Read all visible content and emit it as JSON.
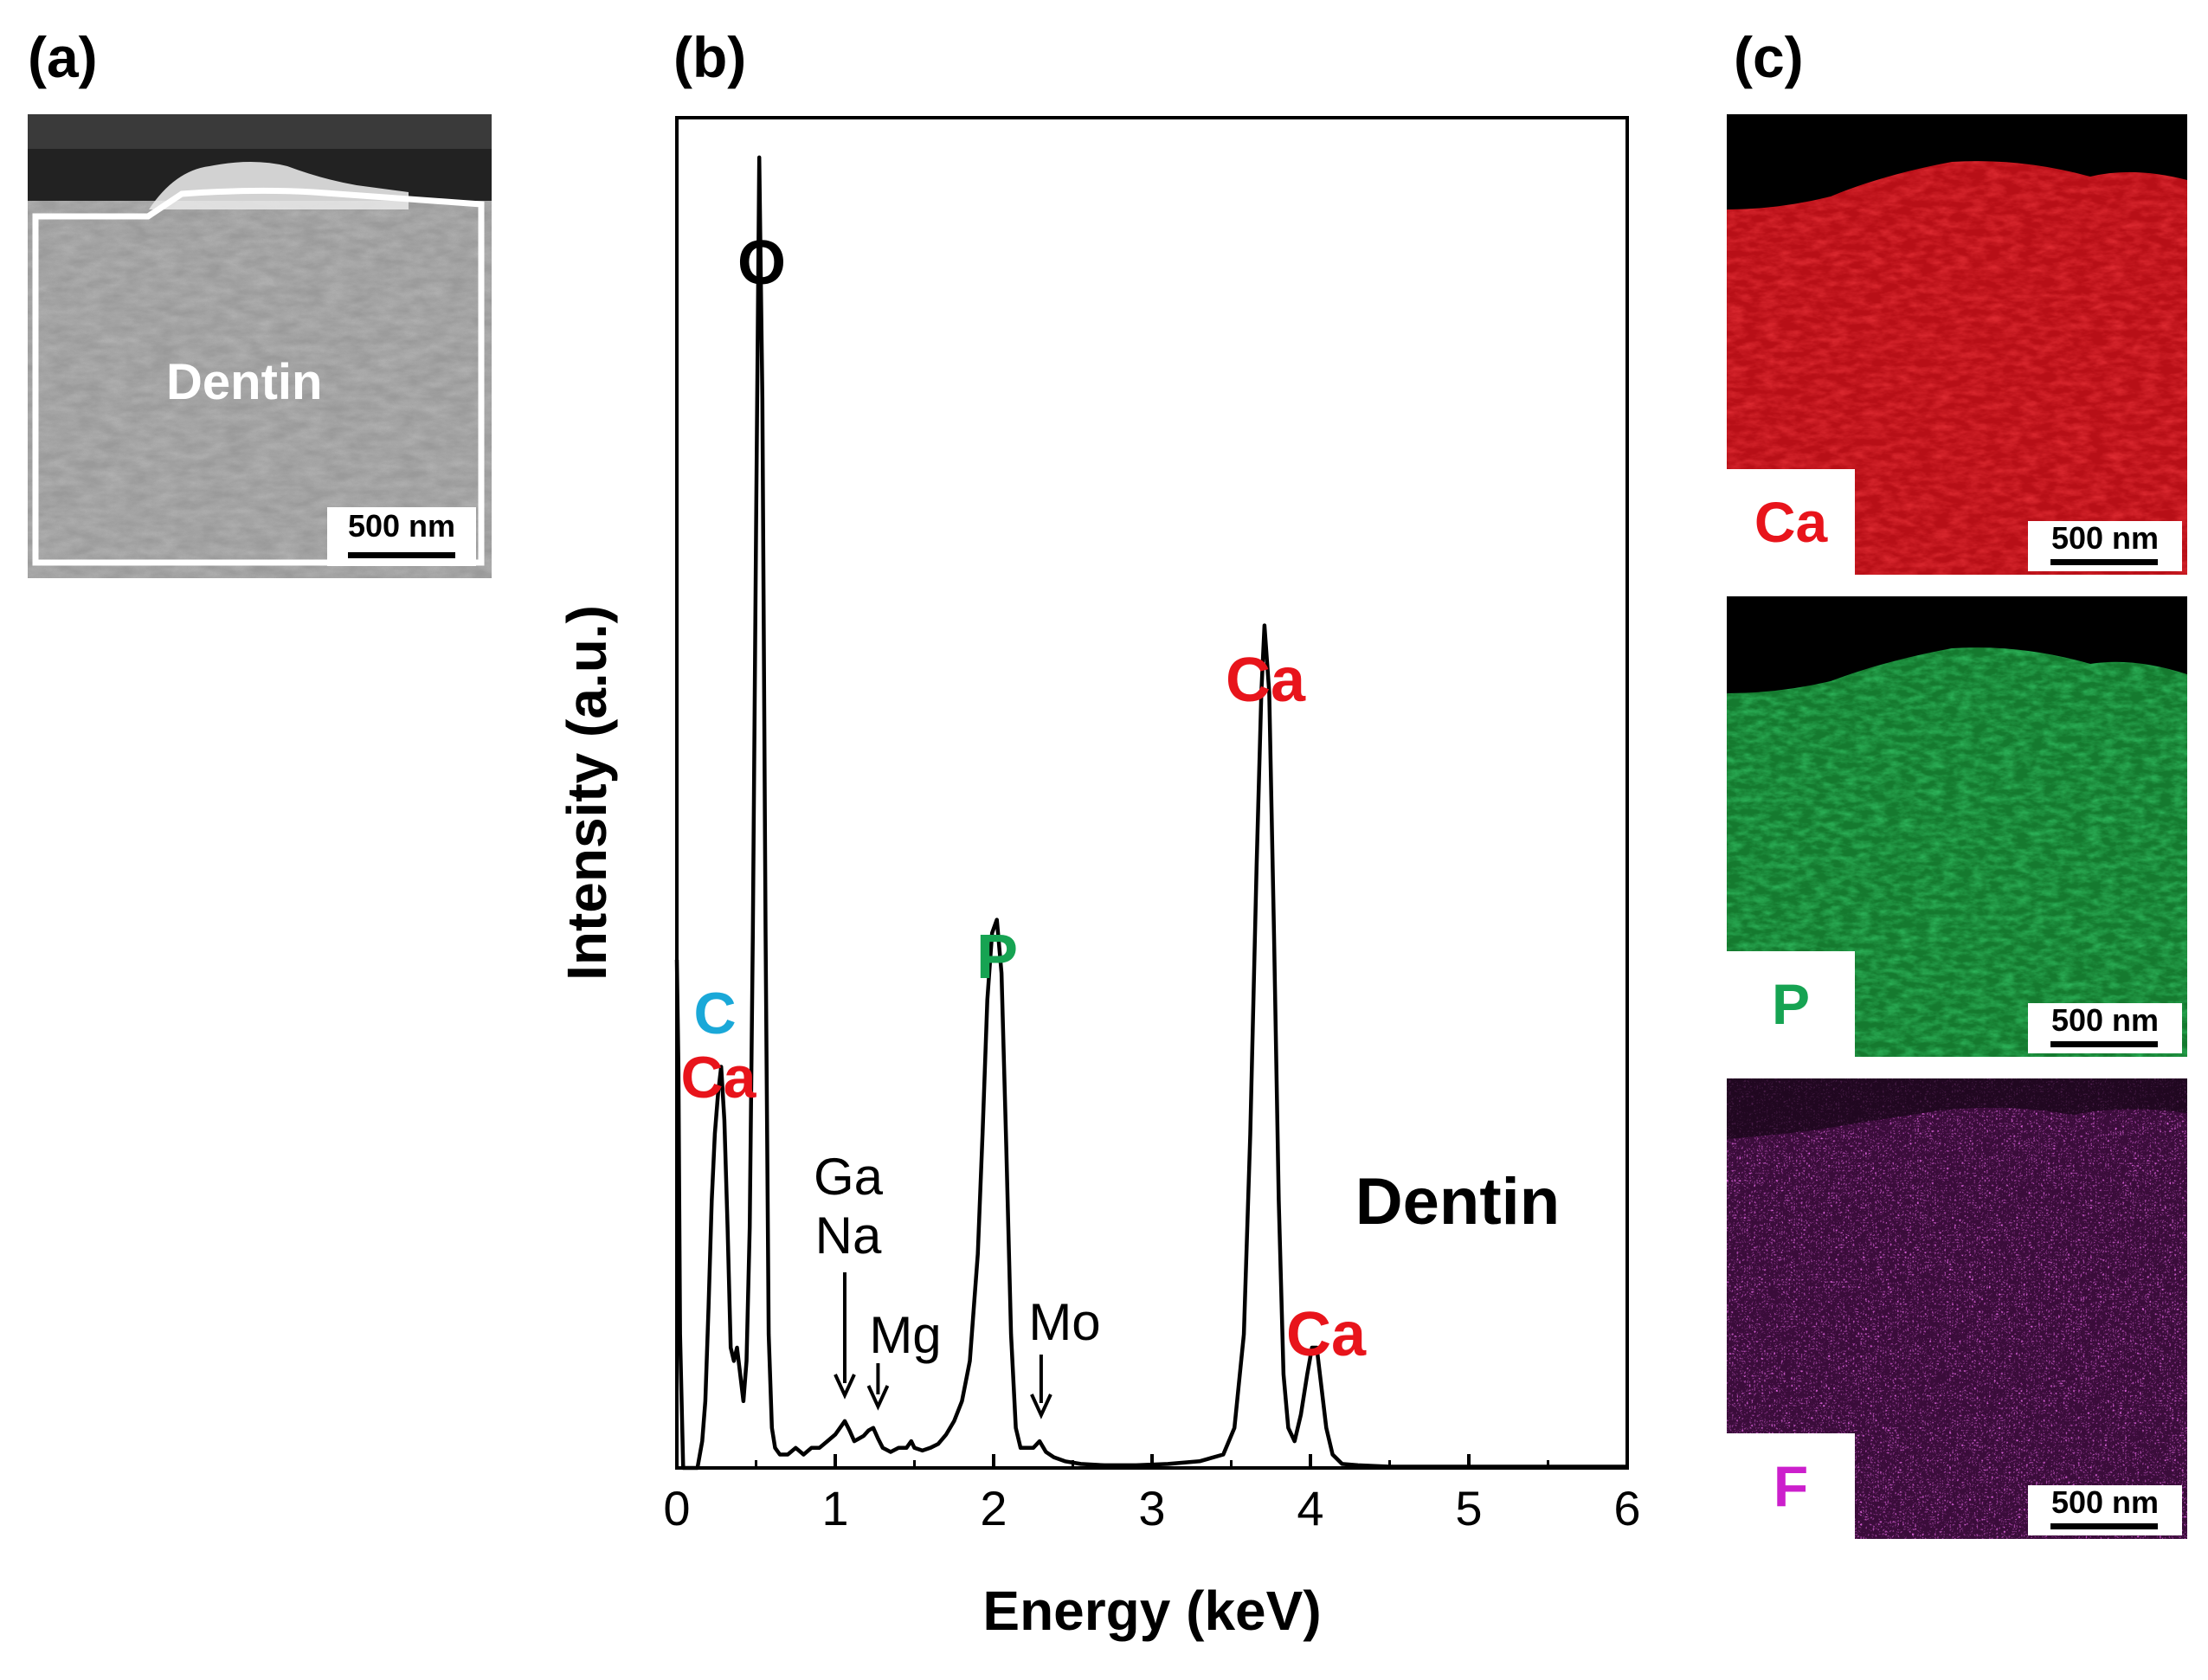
{
  "panels": {
    "a": {
      "label": "(a)",
      "region_label": "Dentin",
      "scale_bar": "500 nm"
    },
    "b": {
      "label": "(b)"
    },
    "c": {
      "label": "(c)",
      "maps": [
        {
          "element": "Ca",
          "color": "#e8141b",
          "scale_bar": "500 nm"
        },
        {
          "element": "P",
          "color": "#16a352",
          "scale_bar": "500 nm"
        },
        {
          "element": "F",
          "color": "#cc1fcc",
          "scale_bar": "500 nm"
        }
      ]
    }
  },
  "chart_data": {
    "type": "line",
    "title": "",
    "xlabel": "Energy (keV)",
    "ylabel": "Intensity (a.u.)",
    "xlim": [
      0,
      6
    ],
    "ylim": [
      0,
      100
    ],
    "x_ticks": [
      "0",
      "1",
      "2",
      "3",
      "4",
      "5",
      "6"
    ],
    "series": [
      {
        "name": "Dentin",
        "x": [
          0.0,
          0.01,
          0.02,
          0.04,
          0.06,
          0.08,
          0.1,
          0.13,
          0.16,
          0.18,
          0.2,
          0.22,
          0.24,
          0.26,
          0.28,
          0.3,
          0.32,
          0.34,
          0.36,
          0.38,
          0.4,
          0.42,
          0.44,
          0.46,
          0.48,
          0.5,
          0.52,
          0.54,
          0.56,
          0.58,
          0.6,
          0.62,
          0.65,
          0.7,
          0.75,
          0.8,
          0.85,
          0.9,
          0.95,
          1.0,
          1.03,
          1.06,
          1.09,
          1.12,
          1.15,
          1.18,
          1.21,
          1.24,
          1.27,
          1.3,
          1.35,
          1.4,
          1.45,
          1.48,
          1.5,
          1.55,
          1.6,
          1.65,
          1.7,
          1.75,
          1.8,
          1.85,
          1.9,
          1.93,
          1.96,
          1.99,
          2.02,
          2.05,
          2.08,
          2.11,
          2.14,
          2.17,
          2.2,
          2.25,
          2.29,
          2.33,
          2.38,
          2.45,
          2.55,
          2.7,
          2.9,
          3.1,
          3.3,
          3.45,
          3.52,
          3.58,
          3.62,
          3.66,
          3.69,
          3.71,
          3.74,
          3.77,
          3.8,
          3.83,
          3.86,
          3.9,
          3.94,
          3.98,
          4.01,
          4.04,
          4.07,
          4.1,
          4.14,
          4.2,
          4.3,
          4.5,
          5.0,
          5.5,
          6.0
        ],
        "y": [
          38,
          30,
          10,
          0,
          0,
          0,
          0,
          0,
          2,
          5,
          12,
          20,
          25,
          28,
          30,
          26,
          18,
          9,
          8,
          9,
          7,
          5,
          8,
          18,
          40,
          70,
          98,
          80,
          40,
          10,
          3,
          1.5,
          1,
          1,
          1.5,
          1,
          1.5,
          1.5,
          2,
          2.5,
          3,
          3.5,
          2.8,
          2,
          2.2,
          2.4,
          2.8,
          3,
          2.2,
          1.5,
          1.2,
          1.5,
          1.5,
          2,
          1.5,
          1.3,
          1.5,
          1.8,
          2.5,
          3.5,
          5,
          8,
          16,
          25,
          35,
          40,
          41,
          37,
          24,
          10,
          3,
          1.5,
          1.5,
          1.5,
          2,
          1.2,
          0.8,
          0.5,
          0.3,
          0.2,
          0.2,
          0.3,
          0.5,
          1,
          3,
          10,
          25,
          45,
          58,
          63,
          58,
          40,
          20,
          7,
          3,
          2,
          4,
          7,
          9,
          9,
          6,
          3,
          1,
          0.3,
          0.2,
          0.1,
          0.1,
          0.1,
          0.1
        ]
      }
    ],
    "annotations": [
      {
        "text": "O",
        "color": "#000000",
        "x": 0.52,
        "y_label": "top"
      },
      {
        "text": "C",
        "color": "#1aa8d8",
        "x": 0.23
      },
      {
        "text": "Ca",
        "color": "#e8141b",
        "x": 0.26
      },
      {
        "text": "Ga",
        "color": "#000000",
        "x": 1.05
      },
      {
        "text": "Na",
        "color": "#000000",
        "x": 1.05
      },
      {
        "text": "Mg",
        "color": "#000000",
        "x": 1.32
      },
      {
        "text": "P",
        "color": "#16a352",
        "x": 2.01
      },
      {
        "text": "Mo",
        "color": "#000000",
        "x": 2.33
      },
      {
        "text": "Ca",
        "color": "#e8141b",
        "x": 3.7
      },
      {
        "text": "Ca",
        "color": "#e8141b",
        "x": 4.12
      },
      {
        "text": "Dentin",
        "color": "#000000",
        "x": 5.0
      }
    ],
    "arrows": [
      {
        "label": "Ga/Na",
        "x": 1.06
      },
      {
        "label": "Mg",
        "x": 1.27
      },
      {
        "label": "Mo",
        "x": 2.3
      }
    ]
  }
}
